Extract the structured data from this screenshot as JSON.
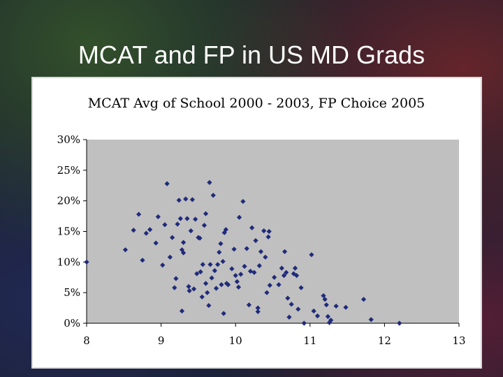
{
  "slide": {
    "title": "MCAT and FP in US MD Grads"
  },
  "colors": {
    "marker": "#1f2a7a",
    "plot_bg": "#c0c0c0",
    "frame_bg": "#ffffff"
  },
  "chart_data": {
    "type": "scatter",
    "title": "MCAT Avg of School 2000 - 2003, FP Choice 2005",
    "xlabel": "",
    "ylabel": "",
    "xlim": [
      8,
      13
    ],
    "ylim": [
      0,
      30
    ],
    "x_ticks": [
      "8",
      "9",
      "10",
      "11",
      "12",
      "13"
    ],
    "y_ticks": [
      "0%",
      "5%",
      "10%",
      "15%",
      "20%",
      "25%",
      "30%"
    ],
    "grid": false,
    "legend": "none",
    "points": [
      [
        8.0,
        10.0
      ],
      [
        8.52,
        12.0
      ],
      [
        8.63,
        15.2
      ],
      [
        8.7,
        17.8
      ],
      [
        8.75,
        10.3
      ],
      [
        8.8,
        14.7
      ],
      [
        8.85,
        15.3
      ],
      [
        8.93,
        13.1
      ],
      [
        8.96,
        17.4
      ],
      [
        9.02,
        9.5
      ],
      [
        9.05,
        16.1
      ],
      [
        9.08,
        22.8
      ],
      [
        9.12,
        10.8
      ],
      [
        9.15,
        14.0
      ],
      [
        9.18,
        5.8
      ],
      [
        9.2,
        7.3
      ],
      [
        9.22,
        16.2
      ],
      [
        9.24,
        20.1
      ],
      [
        9.26,
        17.1
      ],
      [
        9.28,
        12.0
      ],
      [
        9.28,
        2.0
      ],
      [
        9.3,
        11.5
      ],
      [
        9.3,
        13.2
      ],
      [
        9.33,
        20.3
      ],
      [
        9.35,
        17.1
      ],
      [
        9.37,
        6.0
      ],
      [
        9.38,
        5.3
      ],
      [
        9.4,
        15.1
      ],
      [
        9.42,
        20.2
      ],
      [
        9.44,
        5.6
      ],
      [
        9.46,
        17.0
      ],
      [
        9.48,
        8.1
      ],
      [
        9.5,
        14.0
      ],
      [
        9.52,
        13.9
      ],
      [
        9.53,
        8.4
      ],
      [
        9.55,
        4.3
      ],
      [
        9.56,
        9.6
      ],
      [
        9.58,
        16.0
      ],
      [
        9.6,
        17.9
      ],
      [
        9.6,
        6.5
      ],
      [
        9.62,
        5.0
      ],
      [
        9.64,
        2.9
      ],
      [
        9.65,
        23.0
      ],
      [
        9.66,
        9.6
      ],
      [
        9.68,
        7.4
      ],
      [
        9.7,
        20.9
      ],
      [
        9.72,
        8.6
      ],
      [
        9.74,
        5.7
      ],
      [
        9.76,
        9.6
      ],
      [
        9.78,
        11.6
      ],
      [
        9.8,
        13.0
      ],
      [
        9.81,
        6.3
      ],
      [
        9.83,
        10.1
      ],
      [
        9.84,
        1.6
      ],
      [
        9.85,
        14.8
      ],
      [
        9.87,
        15.3
      ],
      [
        9.88,
        6.5
      ],
      [
        9.9,
        6.3
      ],
      [
        9.95,
        8.9
      ],
      [
        9.98,
        12.1
      ],
      [
        10.0,
        7.8
      ],
      [
        10.02,
        6.8
      ],
      [
        10.04,
        5.9
      ],
      [
        10.05,
        17.3
      ],
      [
        10.07,
        8.0
      ],
      [
        10.1,
        19.9
      ],
      [
        10.12,
        9.3
      ],
      [
        10.15,
        12.2
      ],
      [
        10.18,
        3.0
      ],
      [
        10.2,
        8.5
      ],
      [
        10.22,
        15.6
      ],
      [
        10.25,
        8.3
      ],
      [
        10.27,
        13.5
      ],
      [
        10.3,
        2.5
      ],
      [
        10.3,
        1.9
      ],
      [
        10.32,
        9.4
      ],
      [
        10.34,
        11.7
      ],
      [
        10.38,
        15.1
      ],
      [
        10.4,
        10.8
      ],
      [
        10.42,
        5.0
      ],
      [
        10.44,
        14.1
      ],
      [
        10.45,
        15.0
      ],
      [
        10.46,
        6.2
      ],
      [
        10.52,
        7.5
      ],
      [
        10.58,
        6.3
      ],
      [
        10.62,
        9.0
      ],
      [
        10.65,
        7.8
      ],
      [
        10.66,
        11.7
      ],
      [
        10.68,
        8.3
      ],
      [
        10.7,
        4.1
      ],
      [
        10.72,
        1.0
      ],
      [
        10.75,
        3.1
      ],
      [
        10.78,
        8.1
      ],
      [
        10.8,
        9.0
      ],
      [
        10.82,
        7.8
      ],
      [
        10.84,
        2.3
      ],
      [
        10.88,
        5.8
      ],
      [
        10.92,
        0.0
      ],
      [
        11.02,
        11.2
      ],
      [
        11.05,
        2.0
      ],
      [
        11.1,
        1.2
      ],
      [
        11.18,
        4.5
      ],
      [
        11.2,
        3.9
      ],
      [
        11.22,
        3.0
      ],
      [
        11.24,
        1.1
      ],
      [
        11.26,
        0.1
      ],
      [
        11.28,
        0.5
      ],
      [
        11.35,
        2.8
      ],
      [
        11.48,
        2.6
      ],
      [
        11.72,
        3.9
      ],
      [
        11.82,
        0.6
      ],
      [
        12.2,
        0.0
      ]
    ]
  }
}
